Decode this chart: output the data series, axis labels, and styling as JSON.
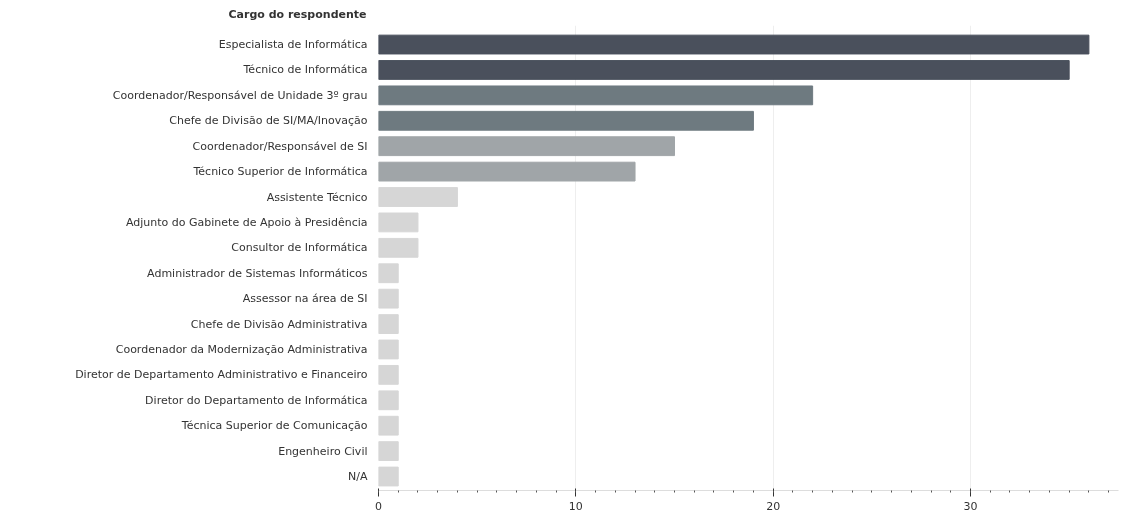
{
  "chart_data": {
    "type": "bar",
    "orientation": "horizontal",
    "ylabel": "Cargo do respondente",
    "categories": [
      "Especialista de Informática",
      "Técnico de Informática",
      "Coordenador/Responsável de Unidade 3º grau",
      "Chefe de Divisão de SI/MA/Inovação",
      "Coordenador/Responsável de SI",
      "Técnico Superior de Informática",
      "Assistente Técnico",
      "Adjunto do Gabinete de Apoio à Presidência",
      "Consultor de Informática",
      "Administrador de Sistemas Informáticos",
      "Assessor na área de SI",
      "Chefe de Divisão Administrativa",
      "Coordenador da Modernização Administrativa",
      "Diretor de Departamento Administrativo e Financeiro",
      "Diretor do Departamento de Informática",
      "Técnica Superior de Comunicação",
      "Engenheiro Civil",
      "N/A"
    ],
    "values": [
      36,
      35,
      22,
      19,
      15,
      13,
      4,
      2,
      2,
      1,
      1,
      1,
      1,
      1,
      1,
      1,
      1,
      1
    ],
    "colors": [
      "#4a505c",
      "#4a505c",
      "#6e7a80",
      "#6e7a80",
      "#a0a5a8",
      "#a0a5a8",
      "#d6d6d6",
      "#d6d6d6",
      "#d6d6d6",
      "#d6d6d6",
      "#d6d6d6",
      "#d6d6d6",
      "#d6d6d6",
      "#d6d6d6",
      "#d6d6d6",
      "#d6d6d6",
      "#d6d6d6",
      "#d6d6d6"
    ],
    "xlim": [
      0,
      37.5
    ],
    "xticks": [
      0,
      10,
      20,
      30
    ],
    "grid": "x"
  }
}
